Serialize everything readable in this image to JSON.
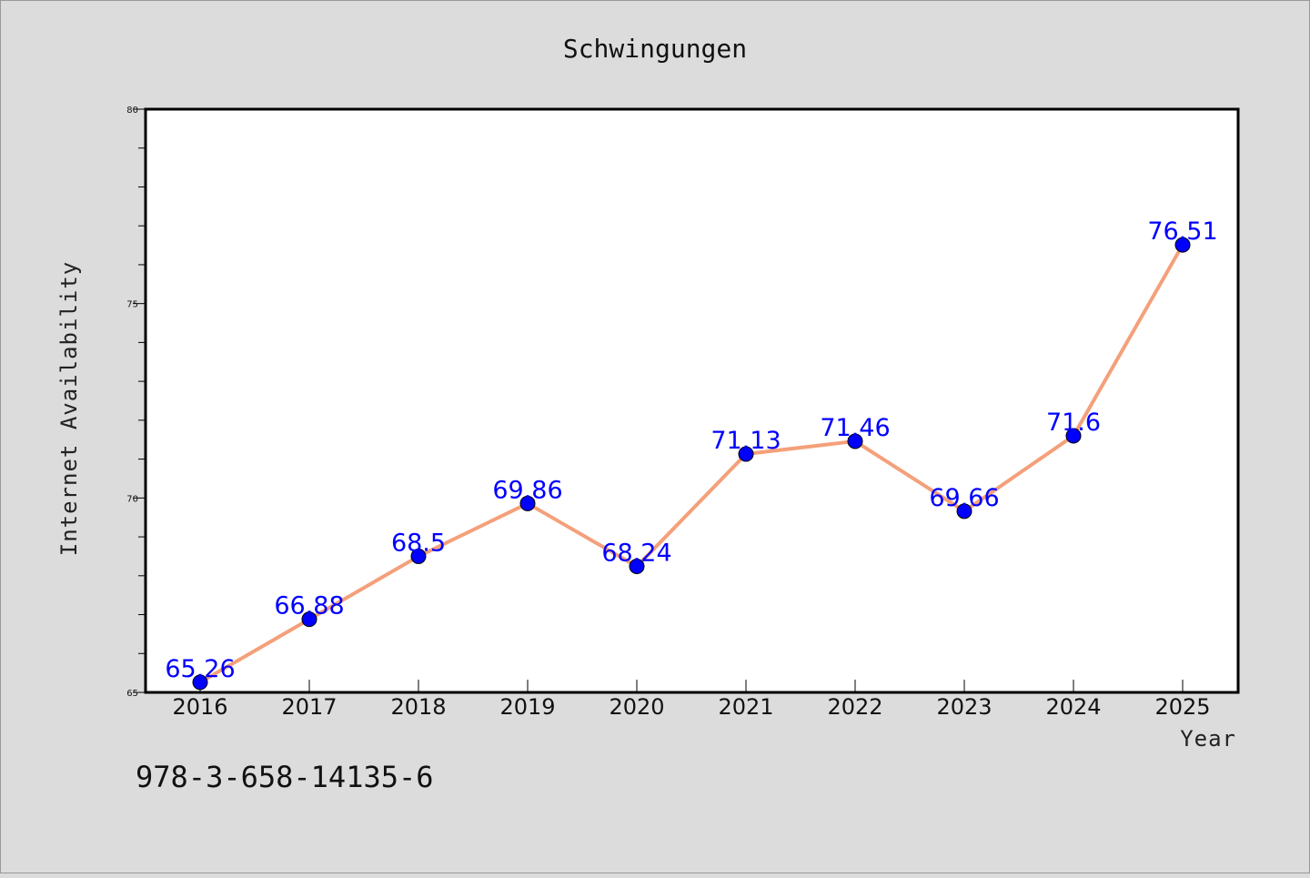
{
  "chart_data": {
    "type": "line",
    "title": "Schwingungen",
    "xlabel": "Year",
    "ylabel": "Internet Availability",
    "categories": [
      "2016",
      "2017",
      "2018",
      "2019",
      "2020",
      "2021",
      "2022",
      "2023",
      "2024",
      "2025"
    ],
    "series": [
      {
        "values": [
          65.26,
          66.88,
          68.5,
          69.86,
          68.24,
          71.13,
          71.46,
          69.66,
          71.6,
          76.51
        ],
        "data_labels": [
          "65.26",
          "66.88",
          "68.5",
          "69.86",
          "68.24",
          "71.13",
          "71.46",
          "69.66",
          "71.6",
          "76.51"
        ],
        "line_color": "#f4a07a",
        "marker_color": "#0000ff"
      }
    ],
    "ylim": [
      65,
      80
    ],
    "yticks": [
      "65",
      "70",
      "75",
      "80"
    ],
    "grid": false,
    "legend": "none",
    "data_label_color": "#0000ff"
  },
  "footer": {
    "isbn": "978-3-658-14135-6"
  }
}
